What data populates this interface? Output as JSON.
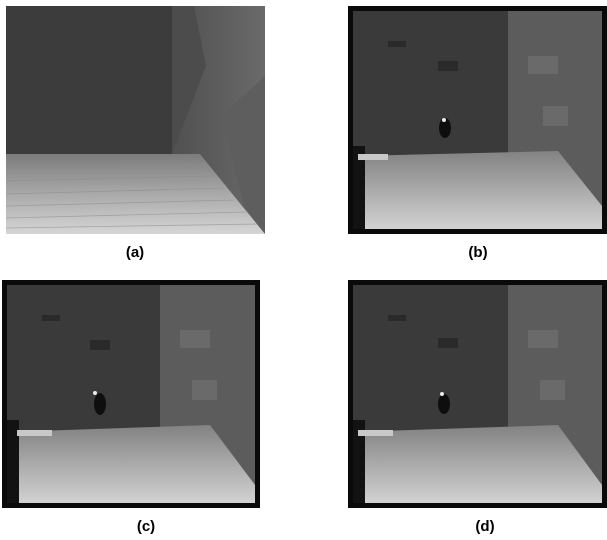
{
  "figure": {
    "panels": [
      {
        "id": "a",
        "caption": "(a)",
        "kind": "ground-truth depth map, smooth room corner"
      },
      {
        "id": "b",
        "caption": "(b)",
        "kind": "estimated depth map, noisy"
      },
      {
        "id": "c",
        "caption": "(c)",
        "kind": "estimated depth map, noisy"
      },
      {
        "id": "d",
        "caption": "(d)",
        "kind": "estimated depth map, noisy"
      }
    ]
  },
  "colors": {
    "background": "#ffffff",
    "back_wall": "#3c3c3c",
    "side_wall": "#5a5a5a",
    "floor_far": "#7a7a7a",
    "floor_near": "#d8d8d8",
    "border": "#0a0a0a"
  }
}
